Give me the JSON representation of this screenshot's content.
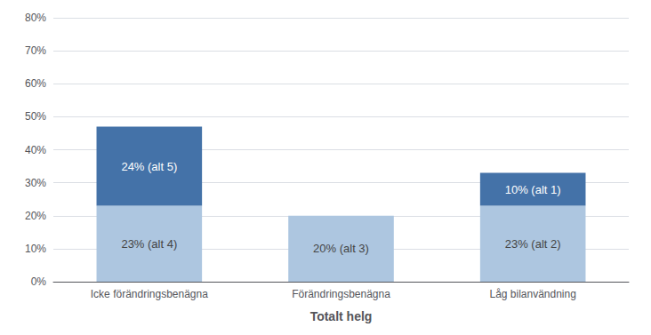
{
  "chart_data": {
    "type": "bar",
    "stacked": true,
    "xlabel": "Totalt helg",
    "categories": [
      "Icke förändringsbenägna",
      "Förändringsbenägna",
      "Låg bilanvändning"
    ],
    "series": [
      {
        "color": "#adc6e0",
        "values": [
          23,
          20,
          23
        ],
        "value_labels": [
          "23% (alt 4)",
          "20% (alt 3)",
          "23% (alt 2)"
        ]
      },
      {
        "color": "#4472a8",
        "values": [
          24,
          0,
          10
        ],
        "value_labels": [
          "24% (alt 5)",
          null,
          "10% (alt 1)"
        ]
      }
    ],
    "data_labels": true,
    "ylim": [
      0,
      80
    ],
    "yticks": [
      {
        "value": 0,
        "label": "0%"
      },
      {
        "value": 10,
        "label": "10%"
      },
      {
        "value": 20,
        "label": "20%"
      },
      {
        "value": 30,
        "label": "30%"
      },
      {
        "value": 40,
        "label": "40%"
      },
      {
        "value": 50,
        "label": "50%"
      },
      {
        "value": 60,
        "label": "60%"
      },
      {
        "value": 70,
        "label": "70%"
      },
      {
        "value": 80,
        "label": "80%"
      }
    ],
    "grid": true
  }
}
